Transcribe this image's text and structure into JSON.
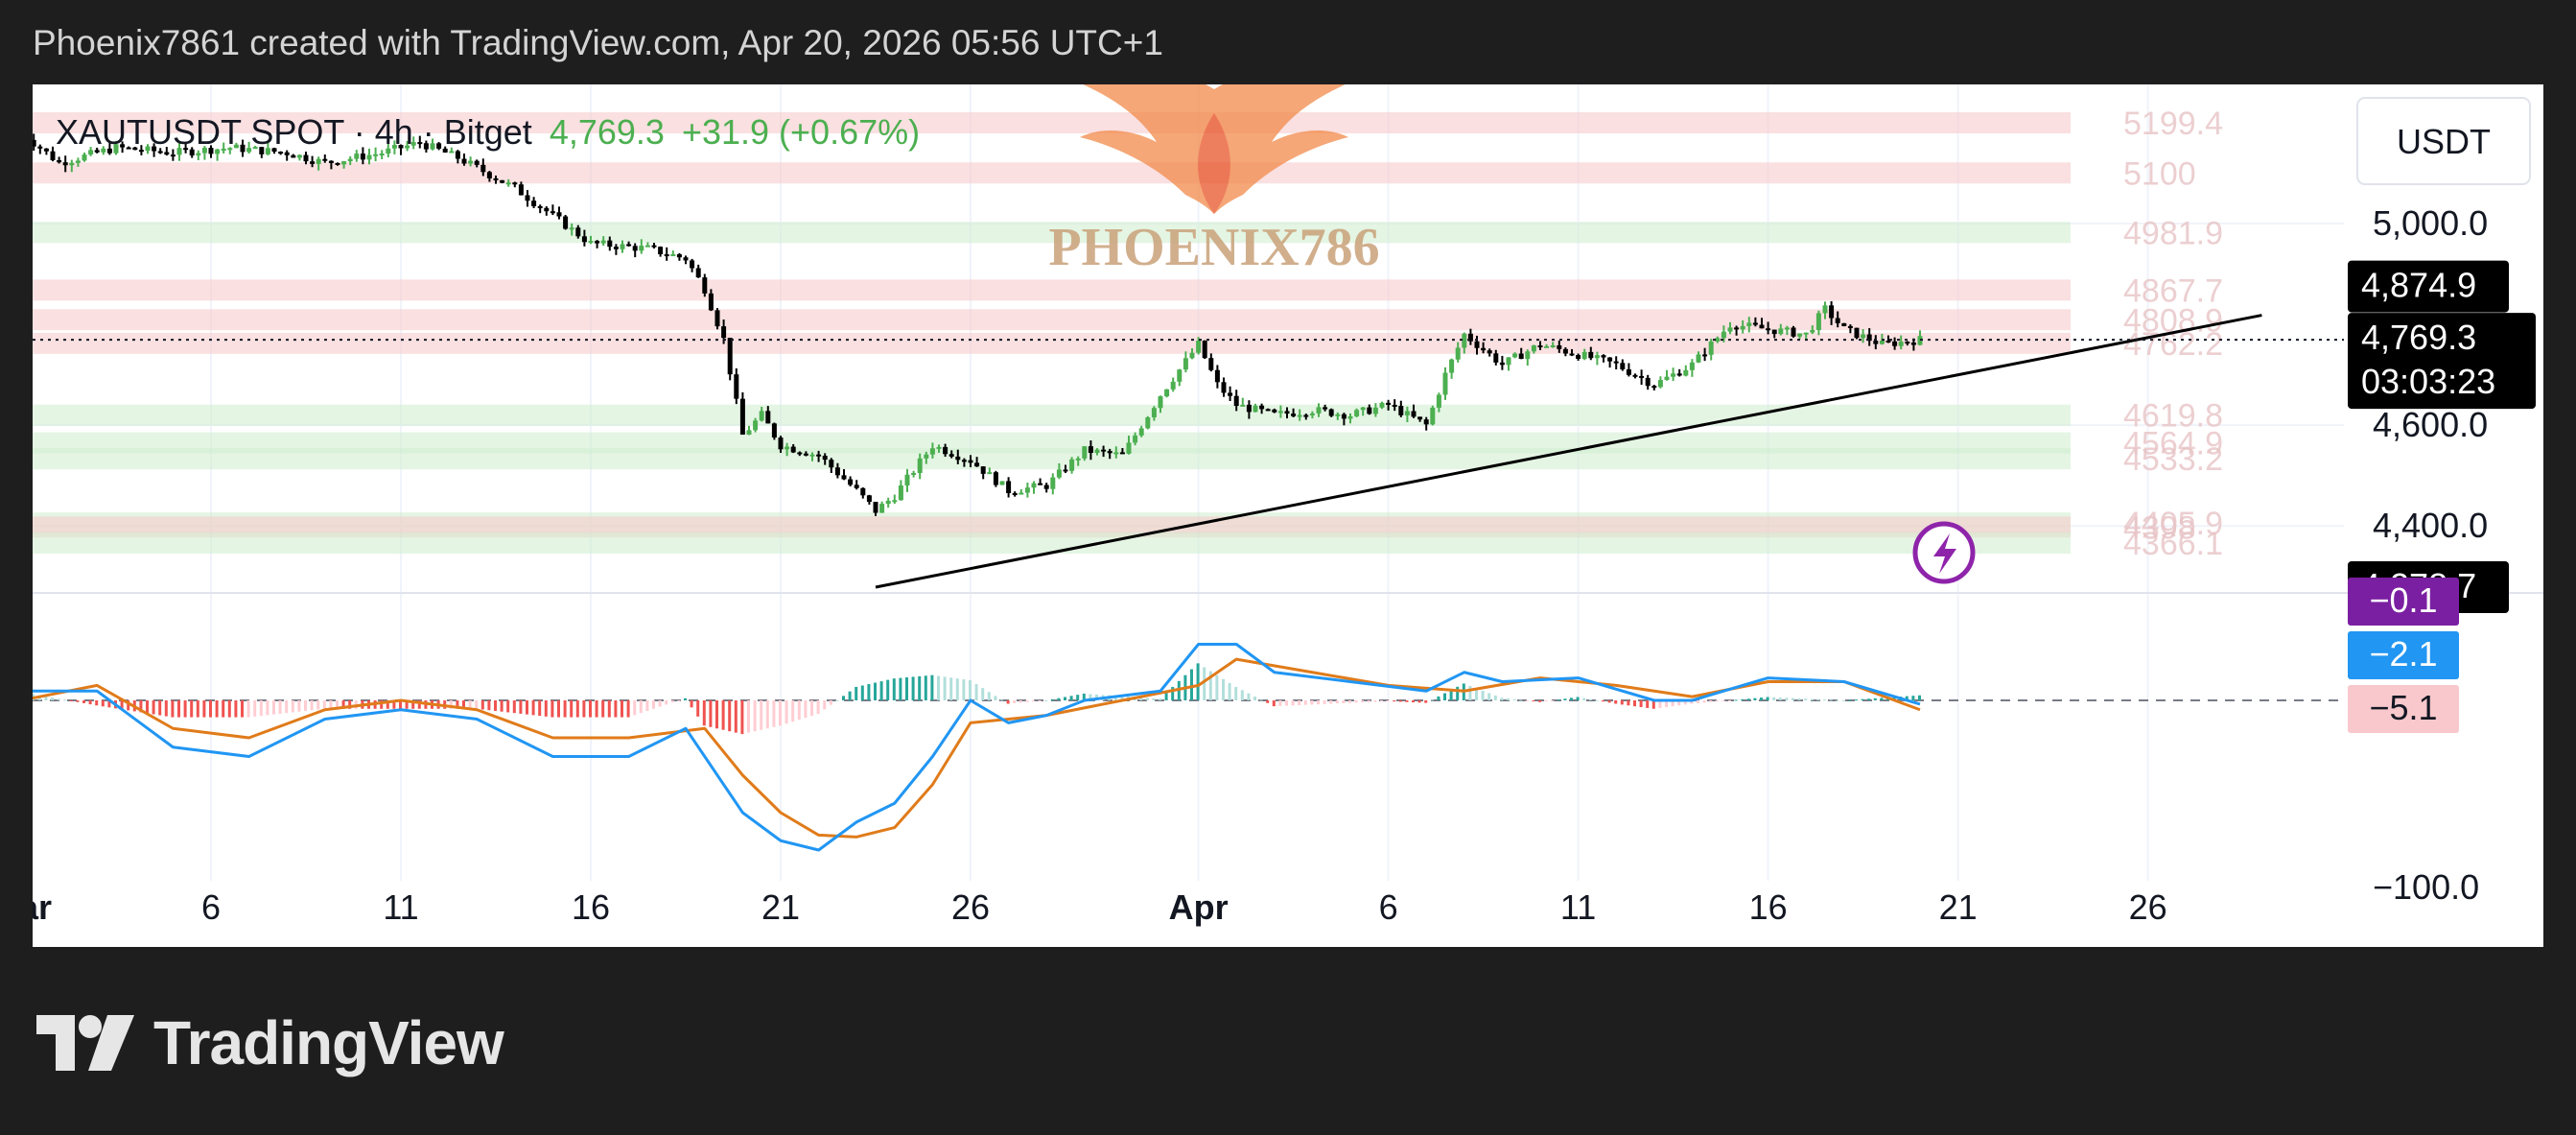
{
  "header": {
    "text": "Phoenix7861 created with TradingView.com, Apr 20, 2026 05:56 UTC+1"
  },
  "chart_header": {
    "symbol": "XAUTUSDT SPOT · 4h · Bitget",
    "last": "4,769.3",
    "change": "+31.9 (+0.67%)"
  },
  "currency_button": "USDT",
  "watermark": {
    "text": "PHOENIX786"
  },
  "footer": {
    "logo_text": "TradingView"
  },
  "colors": {
    "up": "#4caf50",
    "down": "#000000",
    "resistance_zone": "#f5c6c9",
    "support_zone": "#cdeccd",
    "macd_line": "#2196f3",
    "signal_line": "#e07b1a",
    "label_purple": "#7b1fa2",
    "label_blue": "#2196f3",
    "label_pink": "#f8c8cc",
    "lightning": "#8e24aa"
  },
  "chart_data": {
    "type": "candlestick",
    "symbol": "XAUTUSDT SPOT",
    "interval": "4h",
    "exchange": "Bitget",
    "price_axis": {
      "unit": "USDT",
      "ticks": [
        5000.0,
        4600.0,
        4400.0
      ],
      "tick_labels": [
        "5,000.0",
        "4,600.0",
        "4,400.0"
      ],
      "ylim": [
        4250,
        5230
      ]
    },
    "x_axis": {
      "tick_labels": [
        "Mar",
        "6",
        "11",
        "16",
        "21",
        "26",
        "Apr",
        "6",
        "11",
        "16",
        "21",
        "26"
      ],
      "tick_days": [
        1,
        6,
        11,
        16,
        21,
        26,
        32,
        37,
        42,
        47,
        52,
        57
      ],
      "start": "Mar 1",
      "end": "Apr 29"
    },
    "price_path": [
      {
        "day": 1.0,
        "price": 5180
      },
      {
        "day": 2.0,
        "price": 5120
      },
      {
        "day": 3.5,
        "price": 5150
      },
      {
        "day": 5.0,
        "price": 5140
      },
      {
        "day": 6.5,
        "price": 5150
      },
      {
        "day": 8.0,
        "price": 5140
      },
      {
        "day": 9.0,
        "price": 5120
      },
      {
        "day": 10.5,
        "price": 5140
      },
      {
        "day": 11.5,
        "price": 5160
      },
      {
        "day": 12.5,
        "price": 5130
      },
      {
        "day": 14.0,
        "price": 5070
      },
      {
        "day": 16.0,
        "price": 4960
      },
      {
        "day": 17.5,
        "price": 4950
      },
      {
        "day": 18.5,
        "price": 4930
      },
      {
        "day": 19.0,
        "price": 4870
      },
      {
        "day": 19.5,
        "price": 4770
      },
      {
        "day": 20.0,
        "price": 4580
      },
      {
        "day": 20.5,
        "price": 4620
      },
      {
        "day": 21.0,
        "price": 4560
      },
      {
        "day": 22.0,
        "price": 4540
      },
      {
        "day": 23.0,
        "price": 4470
      },
      {
        "day": 23.5,
        "price": 4430
      },
      {
        "day": 24.0,
        "price": 4460
      },
      {
        "day": 25.0,
        "price": 4560
      },
      {
        "day": 26.0,
        "price": 4530
      },
      {
        "day": 27.0,
        "price": 4470
      },
      {
        "day": 28.0,
        "price": 4480
      },
      {
        "day": 29.0,
        "price": 4550
      },
      {
        "day": 30.0,
        "price": 4540
      },
      {
        "day": 31.0,
        "price": 4660
      },
      {
        "day": 32.0,
        "price": 4760
      },
      {
        "day": 32.5,
        "price": 4680
      },
      {
        "day": 33.0,
        "price": 4640
      },
      {
        "day": 34.0,
        "price": 4620
      },
      {
        "day": 35.0,
        "price": 4630
      },
      {
        "day": 36.0,
        "price": 4620
      },
      {
        "day": 37.0,
        "price": 4640
      },
      {
        "day": 38.0,
        "price": 4600
      },
      {
        "day": 38.5,
        "price": 4700
      },
      {
        "day": 39.0,
        "price": 4780
      },
      {
        "day": 40.0,
        "price": 4720
      },
      {
        "day": 41.0,
        "price": 4760
      },
      {
        "day": 42.0,
        "price": 4740
      },
      {
        "day": 43.0,
        "price": 4720
      },
      {
        "day": 44.0,
        "price": 4680
      },
      {
        "day": 45.0,
        "price": 4720
      },
      {
        "day": 46.0,
        "price": 4800
      },
      {
        "day": 47.0,
        "price": 4790
      },
      {
        "day": 48.0,
        "price": 4780
      },
      {
        "day": 48.5,
        "price": 4830
      },
      {
        "day": 49.0,
        "price": 4790
      },
      {
        "day": 50.0,
        "price": 4760
      },
      {
        "day": 51.0,
        "price": 4769.3
      }
    ],
    "horizontal_zones": [
      {
        "label": "5199.4",
        "price": 5199.4,
        "kind": "resistance"
      },
      {
        "label": "5100",
        "price": 5100,
        "kind": "resistance"
      },
      {
        "label": "4981.9",
        "price": 4981.9,
        "kind": "support"
      },
      {
        "label": "4867.7",
        "price": 4867.7,
        "kind": "resistance"
      },
      {
        "label": "4808.9",
        "price": 4808.9,
        "kind": "resistance"
      },
      {
        "label": "4762.2",
        "price": 4762.2,
        "kind": "resistance"
      },
      {
        "label": "4619.8",
        "price": 4619.8,
        "kind": "support"
      },
      {
        "label": "4564.9",
        "price": 4564.9,
        "kind": "support"
      },
      {
        "label": "4533.2",
        "price": 4533.2,
        "kind": "support"
      },
      {
        "label": "4405.9",
        "price": 4405.9,
        "kind": "support"
      },
      {
        "label": "4398",
        "price": 4398,
        "kind": "resistance"
      },
      {
        "label": "4366.1",
        "price": 4366.1,
        "kind": "support"
      }
    ],
    "trendline": {
      "from": {
        "day": 23.5,
        "price": 4278.7
      },
      "to": {
        "day": 60.0,
        "price": 4874.9
      }
    },
    "price_labels": [
      {
        "text": "4,874.9",
        "price": 4874.9
      },
      {
        "text": "4,769.3",
        "price": 4769.3,
        "countdown": "03:03:23"
      },
      {
        "text": "4,278.7",
        "price": 4278.7
      }
    ],
    "macd": {
      "axis_ticks": [
        -100.0
      ],
      "tick_labels": [
        "−100.0"
      ],
      "ylim": [
        -120,
        60
      ],
      "value_labels": [
        "−0.1",
        "−2.1",
        "−5.1"
      ],
      "macd_path": [
        {
          "day": 1,
          "value": 5
        },
        {
          "day": 3,
          "value": 5
        },
        {
          "day": 5,
          "value": -25
        },
        {
          "day": 7,
          "value": -30
        },
        {
          "day": 9,
          "value": -10
        },
        {
          "day": 11,
          "value": -5
        },
        {
          "day": 13,
          "value": -10
        },
        {
          "day": 15,
          "value": -30
        },
        {
          "day": 17,
          "value": -30
        },
        {
          "day": 18.5,
          "value": -15
        },
        {
          "day": 20,
          "value": -60
        },
        {
          "day": 21,
          "value": -75
        },
        {
          "day": 22,
          "value": -80
        },
        {
          "day": 23,
          "value": -65
        },
        {
          "day": 24,
          "value": -55
        },
        {
          "day": 25,
          "value": -30
        },
        {
          "day": 26,
          "value": 0
        },
        {
          "day": 27,
          "value": -12
        },
        {
          "day": 28,
          "value": -8
        },
        {
          "day": 29,
          "value": 0
        },
        {
          "day": 31,
          "value": 5
        },
        {
          "day": 32,
          "value": 30
        },
        {
          "day": 33,
          "value": 30
        },
        {
          "day": 34,
          "value": 15
        },
        {
          "day": 36,
          "value": 10
        },
        {
          "day": 38,
          "value": 5
        },
        {
          "day": 39,
          "value": 15
        },
        {
          "day": 40,
          "value": 10
        },
        {
          "day": 42,
          "value": 12
        },
        {
          "day": 44,
          "value": 0
        },
        {
          "day": 45,
          "value": 0
        },
        {
          "day": 47,
          "value": 12
        },
        {
          "day": 49,
          "value": 10
        },
        {
          "day": 51,
          "value": -2
        }
      ],
      "signal_path": [
        {
          "day": 1,
          "value": 0
        },
        {
          "day": 3,
          "value": 8
        },
        {
          "day": 5,
          "value": -15
        },
        {
          "day": 7,
          "value": -20
        },
        {
          "day": 9,
          "value": -5
        },
        {
          "day": 11,
          "value": 0
        },
        {
          "day": 13,
          "value": -5
        },
        {
          "day": 15,
          "value": -20
        },
        {
          "day": 17,
          "value": -20
        },
        {
          "day": 19,
          "value": -15
        },
        {
          "day": 20,
          "value": -40
        },
        {
          "day": 21,
          "value": -60
        },
        {
          "day": 22,
          "value": -72
        },
        {
          "day": 23,
          "value": -73
        },
        {
          "day": 24,
          "value": -68
        },
        {
          "day": 25,
          "value": -45
        },
        {
          "day": 26,
          "value": -12
        },
        {
          "day": 28,
          "value": -8
        },
        {
          "day": 30,
          "value": 0
        },
        {
          "day": 32,
          "value": 8
        },
        {
          "day": 33,
          "value": 22
        },
        {
          "day": 35,
          "value": 15
        },
        {
          "day": 37,
          "value": 8
        },
        {
          "day": 39,
          "value": 5
        },
        {
          "day": 41,
          "value": 12
        },
        {
          "day": 43,
          "value": 8
        },
        {
          "day": 45,
          "value": 2
        },
        {
          "day": 47,
          "value": 10
        },
        {
          "day": 49,
          "value": 10
        },
        {
          "day": 51,
          "value": -5
        }
      ]
    }
  }
}
